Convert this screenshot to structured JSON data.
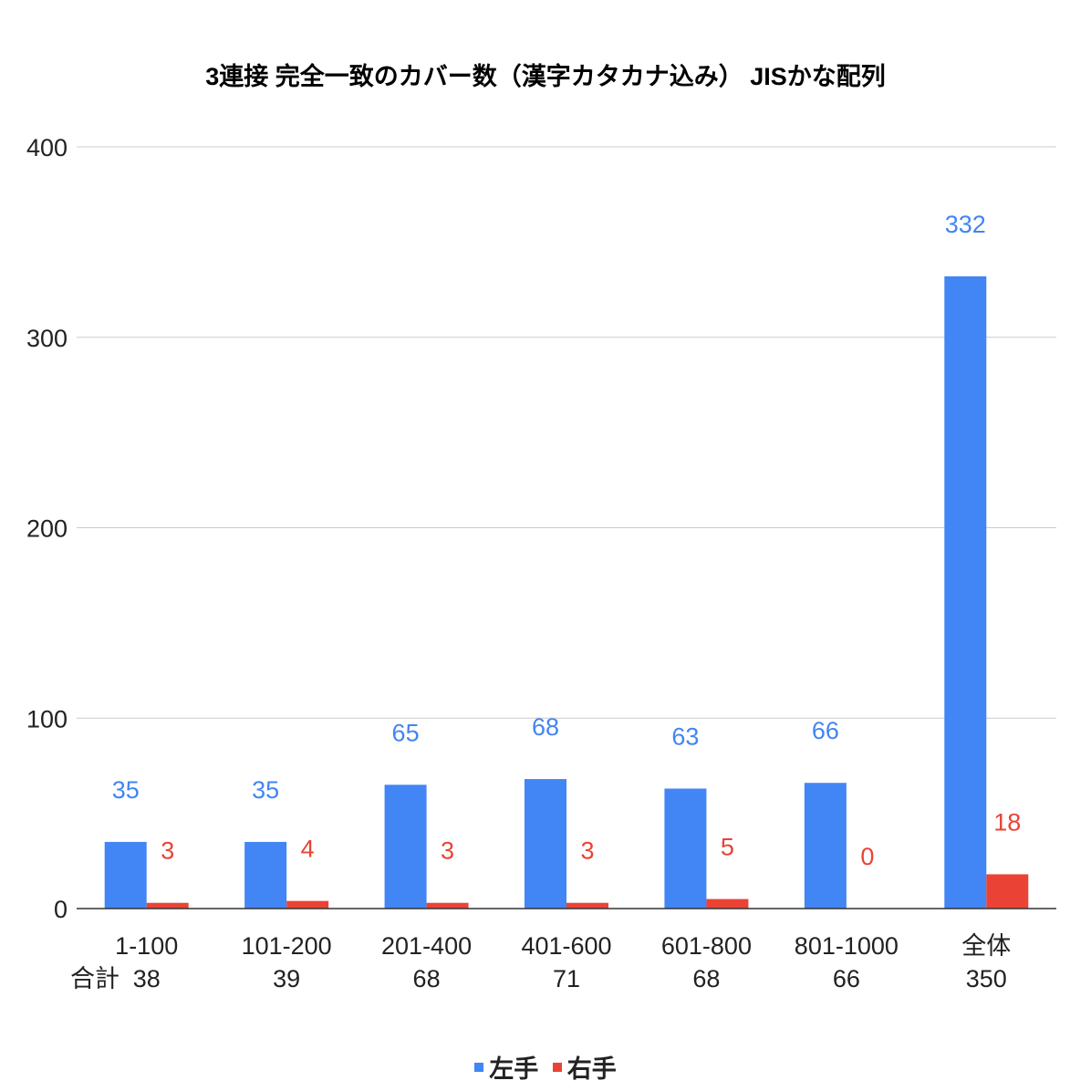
{
  "chart_data": {
    "type": "bar",
    "title": "3連接 完全一致のカバー数（漢字カタカナ込み） JISかな配列",
    "categories": [
      "1-100",
      "101-200",
      "201-400",
      "401-600",
      "601-800",
      "801-1000",
      "全体"
    ],
    "totals_label": "合計",
    "totals": [
      38,
      39,
      68,
      71,
      68,
      66,
      350
    ],
    "series": [
      {
        "name": "左手",
        "color": "#4285f4",
        "values": [
          35,
          35,
          65,
          68,
          63,
          66,
          332
        ]
      },
      {
        "name": "右手",
        "color": "#ea4335",
        "values": [
          3,
          4,
          3,
          3,
          5,
          0,
          18
        ]
      }
    ],
    "ylim": [
      0,
      400
    ],
    "yticks": [
      0,
      100,
      200,
      300,
      400
    ],
    "grid": true,
    "legend_position": "bottom"
  }
}
